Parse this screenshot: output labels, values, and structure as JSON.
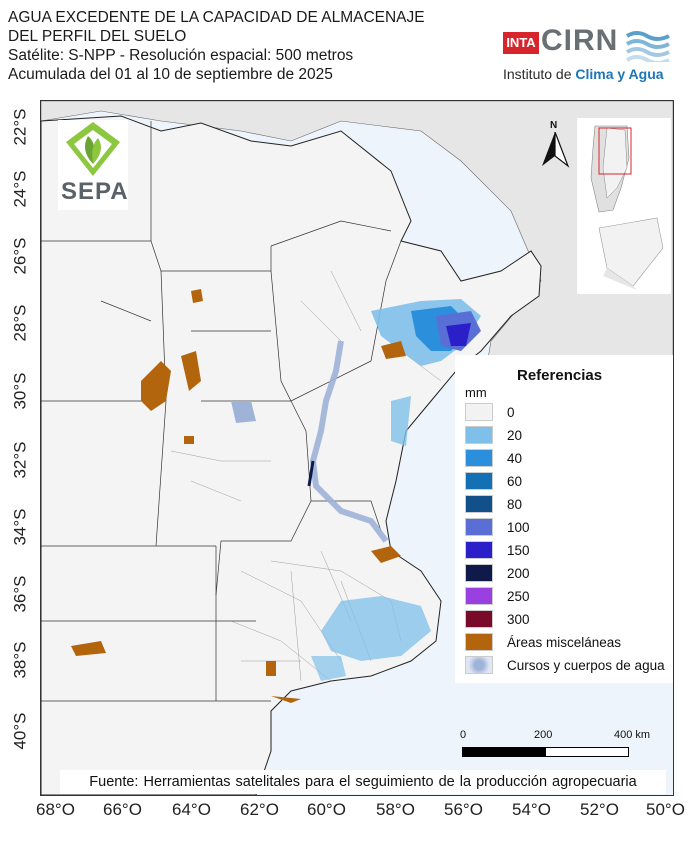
{
  "header": {
    "title_line1": "AGUA EXCEDENTE DE LA CAPACIDAD DE ALMACENAJE",
    "title_line2": "DEL PERFIL DEL SUELO",
    "subtitle_line1": "Satélite: S-NPP - Resolución espacial: 500 metros",
    "subtitle_line2": "Acumulada del 01 al 10 de septiembre de 2025"
  },
  "logos": {
    "inta": "INTA",
    "cirn": "CIRN",
    "cirn_sub_prefix": "Instituto de ",
    "cirn_sub_highlight": "Clima y Agua",
    "sepa": "SEPA"
  },
  "north_arrow": {
    "label": "N"
  },
  "axes": {
    "lat_ticks": [
      "22°S",
      "24°S",
      "26°S",
      "28°S",
      "30°S",
      "32°S",
      "34°S",
      "36°S",
      "38°S",
      "40°S"
    ],
    "lon_ticks": [
      "68°O",
      "66°O",
      "64°O",
      "62°O",
      "60°O",
      "58°O",
      "56°O",
      "54°O",
      "52°O",
      "50°O"
    ]
  },
  "legend": {
    "title": "Referencias",
    "unit": "mm",
    "items": [
      {
        "label": "0",
        "color": "#f2f2f2"
      },
      {
        "label": "20",
        "color": "#7fc0ea"
      },
      {
        "label": "40",
        "color": "#2b8fdc"
      },
      {
        "label": "60",
        "color": "#1470b4"
      },
      {
        "label": "80",
        "color": "#12508a"
      },
      {
        "label": "100",
        "color": "#5a6fd6"
      },
      {
        "label": "150",
        "color": "#2a1fc9"
      },
      {
        "label": "200",
        "color": "#101a4a"
      },
      {
        "label": "250",
        "color": "#9a3fe0"
      },
      {
        "label": "300",
        "color": "#7a0a2a"
      },
      {
        "label": "Áreas misceláneas",
        "color": "#b3650e"
      },
      {
        "label": "Cursos y cuerpos de agua",
        "color": "#9fb3d8"
      }
    ]
  },
  "scale_bar": {
    "label_0": "0",
    "label_200": "200",
    "label_400": "400 km"
  },
  "source": "Fuente: Herramientas satelitales para el seguimiento de la producción agropecuaria",
  "colors": {
    "ocean": "#eef4fb",
    "land_outside": "#e6e6e6",
    "land": "#f4f4f4",
    "border": "#222222"
  }
}
